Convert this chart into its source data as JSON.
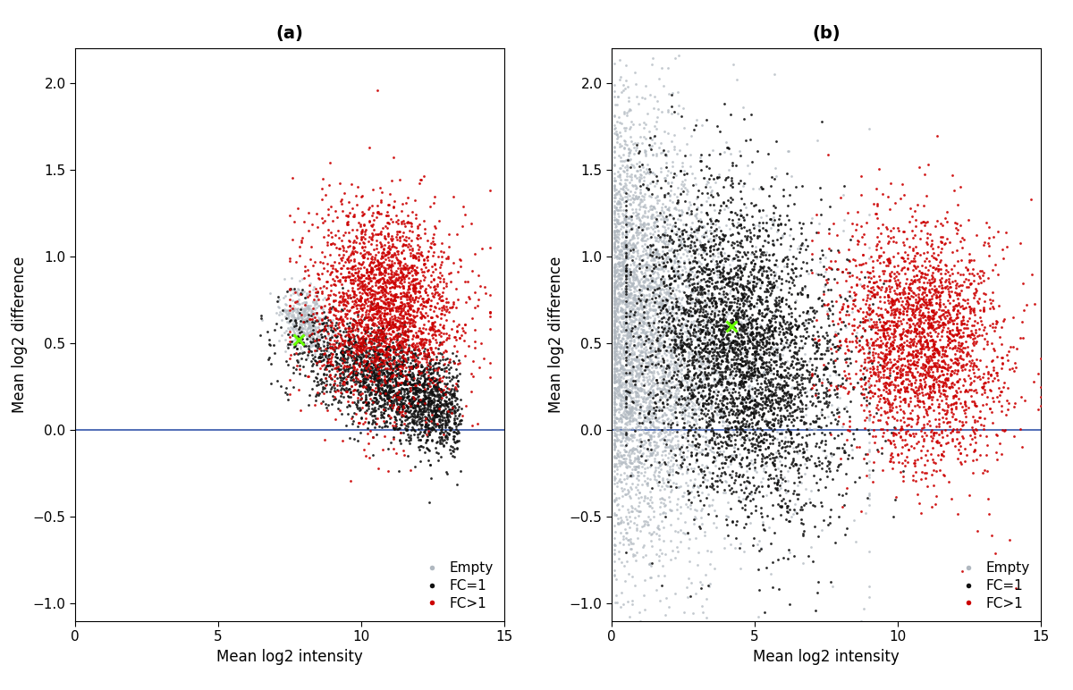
{
  "title_a": "(a)",
  "title_b": "(b)",
  "xlabel": "Mean log2 intensity",
  "ylabel": "Mean log2 difference",
  "xlim": [
    0,
    15
  ],
  "ylim": [
    -1.1,
    2.2
  ],
  "xticks": [
    0,
    5,
    10,
    15
  ],
  "yticks": [
    -1.0,
    -0.5,
    0.0,
    0.5,
    1.0,
    1.5,
    2.0
  ],
  "color_empty": "#b0b8c0",
  "color_fc1": "#111111",
  "color_fc_gt1": "#cc0000",
  "color_hline": "#3355aa",
  "color_cross": "#66ff00",
  "legend_labels": [
    "Empty",
    "FC=1",
    "FC>1"
  ],
  "marker_size": 4,
  "alpha_empty": 0.75,
  "alpha_fc1": 0.9,
  "alpha_fc_gt1": 0.9,
  "seed_a": 42,
  "seed_b": 99,
  "n_empty_a": 400,
  "n_fc1_a": 2200,
  "n_fcgt1_a": 2500,
  "n_empty_b": 5000,
  "n_fc1_b": 4000,
  "n_fcgt1_b": 2500,
  "cross_a_x": 7.8,
  "cross_a_y": 0.52,
  "cross_b_x": 4.2,
  "cross_b_y": 0.6
}
